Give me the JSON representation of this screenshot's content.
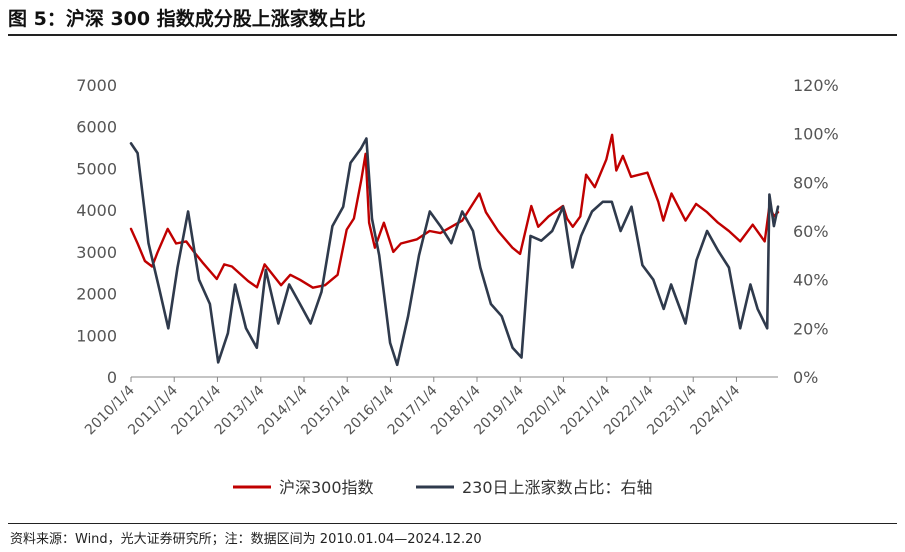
{
  "title": "图 5：沪深 300 指数成分股上涨家数占比",
  "source": "资料来源：Wind，光大证券研究所；注：数据区间为 2010.01.04—2024.12.20",
  "chart_data": {
    "type": "line",
    "title": "图 5：沪深 300 指数成分股上涨家数占比",
    "x_ticks": [
      "2010/1/4",
      "2011/1/4",
      "2012/1/4",
      "2013/1/4",
      "2014/1/4",
      "2015/1/4",
      "2016/1/4",
      "2017/1/4",
      "2018/1/4",
      "2019/1/4",
      "2020/1/4",
      "2021/1/4",
      "2022/1/4",
      "2023/1/4",
      "2024/1/4"
    ],
    "y_left": {
      "ticks": [
        "0",
        "1000",
        "2000",
        "3000",
        "4000",
        "5000",
        "6000",
        "7000"
      ],
      "range": [
        0,
        7000
      ]
    },
    "y_right": {
      "ticks": [
        "0%",
        "20%",
        "40%",
        "60%",
        "80%",
        "100%",
        "120%"
      ],
      "range": [
        0,
        1.2
      ]
    },
    "grid": false,
    "legend_position": "bottom",
    "series": [
      {
        "name": "沪深300指数",
        "axis": "left",
        "color": "#c00000",
        "x": [
          "2010-01-04",
          "2010-03-01",
          "2010-05-01",
          "2010-07-01",
          "2010-08-15",
          "2010-11-10",
          "2011-01-20",
          "2011-04-15",
          "2011-06-20",
          "2011-08-30",
          "2011-12-30",
          "2012-03-01",
          "2012-05-05",
          "2012-09-20",
          "2012-12-03",
          "2013-02-05",
          "2013-06-25",
          "2013-09-10",
          "2013-12-01",
          "2014-03-20",
          "2014-07-01",
          "2014-10-15",
          "2014-12-31",
          "2015-03-01",
          "2015-05-01",
          "2015-06-08",
          "2015-07-08",
          "2015-08-26",
          "2015-11-10",
          "2016-01-28",
          "2016-04-01",
          "2016-08-15",
          "2016-11-30",
          "2017-03-01",
          "2017-06-01",
          "2017-09-01",
          "2018-01-24",
          "2018-03-20",
          "2018-07-01",
          "2018-10-30",
          "2019-01-03",
          "2019-04-08",
          "2019-06-05",
          "2019-09-01",
          "2019-12-31",
          "2020-02-03",
          "2020-03-23",
          "2020-05-25",
          "2020-07-13",
          "2020-09-25",
          "2020-12-31",
          "2021-02-18",
          "2021-03-25",
          "2021-05-20",
          "2021-07-28",
          "2021-12-13",
          "2022-03-15",
          "2022-04-26",
          "2022-07-05",
          "2022-10-31",
          "2023-01-28",
          "2023-05-01",
          "2023-08-01",
          "2023-11-01",
          "2024-02-05",
          "2024-05-20",
          "2024-08-30",
          "2024-10-08",
          "2024-11-15",
          "2024-12-20"
        ],
        "y": [
          3550,
          3200,
          2780,
          2650,
          2980,
          3550,
          3200,
          3250,
          3000,
          2750,
          2350,
          2700,
          2650,
          2300,
          2150,
          2700,
          2200,
          2450,
          2330,
          2140,
          2200,
          2450,
          3533,
          3800,
          4700,
          5350,
          3700,
          3100,
          3700,
          3000,
          3200,
          3300,
          3500,
          3450,
          3600,
          3750,
          4400,
          3950,
          3500,
          3100,
          2950,
          4100,
          3600,
          3850,
          4100,
          3800,
          3600,
          3850,
          4850,
          4550,
          5211,
          5807,
          4950,
          5300,
          4800,
          4900,
          4200,
          3750,
          4400,
          3750,
          4150,
          3950,
          3700,
          3500,
          3250,
          3650,
          3250,
          4100,
          3850,
          3950
        ]
      },
      {
        "name": "230日上涨家数占比：右轴",
        "axis": "right",
        "color": "#2f3a4c",
        "x": [
          "2010-01-04",
          "2010-03-01",
          "2010-06-01",
          "2010-09-01",
          "2010-11-15",
          "2011-02-01",
          "2011-05-01",
          "2011-08-01",
          "2011-11-01",
          "2012-01-10",
          "2012-04-01",
          "2012-06-01",
          "2012-09-01",
          "2012-12-01",
          "2013-02-15",
          "2013-06-01",
          "2013-09-01",
          "2013-12-01",
          "2014-03-01",
          "2014-06-01",
          "2014-09-01",
          "2014-12-01",
          "2015-02-01",
          "2015-05-01",
          "2015-06-15",
          "2015-08-01",
          "2015-10-01",
          "2016-01-01",
          "2016-03-01",
          "2016-06-01",
          "2016-09-01",
          "2016-12-01",
          "2017-03-01",
          "2017-06-01",
          "2017-09-01",
          "2017-12-01",
          "2018-02-01",
          "2018-05-01",
          "2018-08-01",
          "2018-11-01",
          "2019-01-15",
          "2019-04-01",
          "2019-07-01",
          "2019-10-01",
          "2020-01-01",
          "2020-03-20",
          "2020-06-01",
          "2020-09-01",
          "2020-12-01",
          "2021-02-15",
          "2021-05-01",
          "2021-08-01",
          "2021-11-01",
          "2022-02-01",
          "2022-04-30",
          "2022-07-01",
          "2022-10-31",
          "2023-02-01",
          "2023-05-01",
          "2023-08-01",
          "2023-11-01",
          "2024-02-05",
          "2024-05-01",
          "2024-07-01",
          "2024-09-20",
          "2024-10-08",
          "2024-11-15",
          "2024-12-20"
        ],
        "y": [
          0.96,
          0.92,
          0.55,
          0.36,
          0.2,
          0.45,
          0.68,
          0.4,
          0.3,
          0.06,
          0.18,
          0.38,
          0.2,
          0.12,
          0.44,
          0.22,
          0.38,
          0.3,
          0.22,
          0.35,
          0.62,
          0.7,
          0.88,
          0.94,
          0.98,
          0.65,
          0.5,
          0.14,
          0.05,
          0.25,
          0.5,
          0.68,
          0.62,
          0.55,
          0.68,
          0.6,
          0.45,
          0.3,
          0.25,
          0.12,
          0.08,
          0.58,
          0.56,
          0.6,
          0.7,
          0.45,
          0.58,
          0.68,
          0.72,
          0.72,
          0.6,
          0.7,
          0.46,
          0.4,
          0.28,
          0.38,
          0.22,
          0.48,
          0.6,
          0.52,
          0.45,
          0.2,
          0.38,
          0.28,
          0.2,
          0.75,
          0.62,
          0.7
        ]
      }
    ]
  }
}
